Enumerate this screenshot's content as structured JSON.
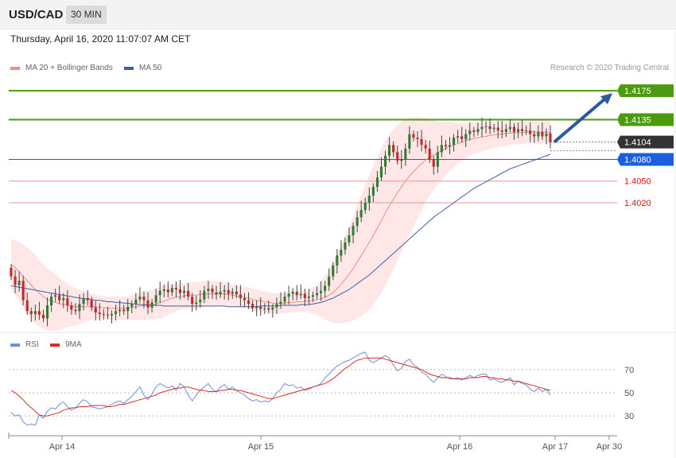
{
  "header": {
    "symbol": "USD/CAD",
    "timeframe": "30 MIN"
  },
  "datetime": "Thursday, April 16, 2020 11:07:07 AM CET",
  "credit": "Research © 2020 Trading Central",
  "colors": {
    "bull": "#2e7d32",
    "bear": "#c62828",
    "ma20": "#f28b82",
    "band": "#ffe3e3",
    "ma50": "#3f5ea8",
    "resistance": "#4c9a0e",
    "pivot": "#1a5fe0",
    "support": "#e88a8a",
    "current": "#333333",
    "arrow": "#2c5aa0",
    "rsi": "#6f90d8",
    "rsi_ma": "#d62d20"
  },
  "chart_data": [
    {
      "type": "candlestick",
      "title": "USD/CAD",
      "legend": [
        {
          "name": "MA 20 + Bollinger Bands",
          "color": "#f28b82"
        },
        {
          "name": "MA 50",
          "color": "#3f5ea8"
        }
      ],
      "ylim": [
        1.3845,
        1.4195
      ],
      "levels": [
        {
          "value": 1.4175,
          "label": "1.4175",
          "kind": "resistance"
        },
        {
          "value": 1.4135,
          "label": "1.4135",
          "kind": "resistance"
        },
        {
          "value": 1.4104,
          "label": "1.4104",
          "kind": "current"
        },
        {
          "value": 1.408,
          "label": "1.4080",
          "kind": "pivot"
        },
        {
          "value": 1.405,
          "label": "1.4050",
          "kind": "support"
        },
        {
          "value": 1.402,
          "label": "1.4020",
          "kind": "support"
        }
      ],
      "x_ticks": [
        "Apr 14",
        "Apr 15",
        "Apr 16",
        "Apr 17",
        "Apr 30"
      ],
      "close": [
        1.3918,
        1.3906,
        1.3912,
        1.3885,
        1.387,
        1.3866,
        1.387,
        1.3865,
        1.386,
        1.3878,
        1.389,
        1.3892,
        1.3885,
        1.3888,
        1.3878,
        1.3872,
        1.387,
        1.388,
        1.3888,
        1.3885,
        1.3875,
        1.3868,
        1.3866,
        1.3865,
        1.3864,
        1.3866,
        1.387,
        1.3872,
        1.387,
        1.3876,
        1.388,
        1.3886,
        1.389,
        1.3885,
        1.3875,
        1.3882,
        1.3892,
        1.3898,
        1.39,
        1.3896,
        1.3902,
        1.39,
        1.3895,
        1.3898,
        1.389,
        1.388,
        1.3882,
        1.3886,
        1.3898,
        1.3901,
        1.3896,
        1.3893,
        1.3897,
        1.3899,
        1.3894,
        1.3897,
        1.3893,
        1.3888,
        1.3885,
        1.388,
        1.3874,
        1.3876,
        1.3873,
        1.3874,
        1.3872,
        1.3875,
        1.388,
        1.3883,
        1.389,
        1.3894,
        1.3897,
        1.3892,
        1.3894,
        1.3888,
        1.389,
        1.3892,
        1.3895,
        1.3898,
        1.3905,
        1.3918,
        1.3933,
        1.3947,
        1.3955,
        1.3965,
        1.3975,
        1.3988,
        1.4,
        1.401,
        1.402,
        1.403,
        1.4042,
        1.4055,
        1.407,
        1.4085,
        1.41,
        1.409,
        1.4078,
        1.408,
        1.4095,
        1.4115,
        1.411,
        1.4108,
        1.41,
        1.4095,
        1.408,
        1.407,
        1.409,
        1.41,
        1.4098,
        1.41,
        1.411,
        1.4112,
        1.4108,
        1.4115,
        1.412,
        1.4118,
        1.4122,
        1.4125,
        1.4126,
        1.4122,
        1.4124,
        1.412,
        1.4118,
        1.4122,
        1.4125,
        1.4118,
        1.4122,
        1.4119,
        1.412,
        1.4115,
        1.4112,
        1.4118,
        1.4112,
        1.4116,
        1.4104
      ],
      "ma20": [
        1.3935,
        1.393,
        1.3925,
        1.3918,
        1.3912,
        1.3906,
        1.39,
        1.3895,
        1.389,
        1.3886,
        1.3884,
        1.3882,
        1.388,
        1.3879,
        1.3878,
        1.3877,
        1.3876,
        1.3876,
        1.3876,
        1.3876,
        1.3876,
        1.3876,
        1.3875,
        1.3875,
        1.3874,
        1.3874,
        1.3874,
        1.3874,
        1.3874,
        1.3874,
        1.3875,
        1.3876,
        1.3877,
        1.3878,
        1.3878,
        1.3879,
        1.388,
        1.3882,
        1.3884,
        1.3886,
        1.3888,
        1.3889,
        1.389,
        1.3891,
        1.3892,
        1.3892,
        1.3892,
        1.3893,
        1.3894,
        1.3894,
        1.3894,
        1.3894,
        1.3894,
        1.3894,
        1.3893,
        1.3892,
        1.3891,
        1.389,
        1.3889,
        1.3888,
        1.3886,
        1.3885,
        1.3884,
        1.3883,
        1.3882,
        1.3881,
        1.3881,
        1.3881,
        1.3881,
        1.3882,
        1.3882,
        1.3883,
        1.3883,
        1.3884,
        1.3884,
        1.3885,
        1.3886,
        1.3887,
        1.3889,
        1.3892,
        1.3896,
        1.3901,
        1.3907,
        1.3914,
        1.3921,
        1.3929,
        1.3938,
        1.3947,
        1.3956,
        1.3965,
        1.3975,
        1.3985,
        1.3995,
        1.4006,
        1.4016,
        1.4025,
        1.4034,
        1.4042,
        1.405,
        1.4057,
        1.4063,
        1.4069,
        1.4074,
        1.4079,
        1.4083,
        1.4086,
        1.4089,
        1.4092,
        1.4095,
        1.4098,
        1.41,
        1.4102,
        1.4104,
        1.4106,
        1.4108,
        1.4109,
        1.411,
        1.4111,
        1.4112,
        1.4113,
        1.4114,
        1.4115,
        1.4115,
        1.4116,
        1.4116,
        1.4117,
        1.4117,
        1.4117,
        1.4118,
        1.4118,
        1.4118,
        1.4118,
        1.4118,
        1.4118,
        1.4117
      ],
      "band_width": [
        0.0035,
        0.0038,
        0.0041,
        0.0044,
        0.0046,
        0.0047,
        0.0047,
        0.0046,
        0.0045,
        0.0043,
        0.0041,
        0.0039,
        0.0036,
        0.0033,
        0.003,
        0.0028,
        0.0026,
        0.0024,
        0.0022,
        0.002,
        0.0018,
        0.0017,
        0.0016,
        0.0016,
        0.0016,
        0.0016,
        0.0016,
        0.0016,
        0.0016,
        0.0016,
        0.0017,
        0.0018,
        0.0019,
        0.002,
        0.002,
        0.002,
        0.0021,
        0.0022,
        0.0022,
        0.0021,
        0.002,
        0.0019,
        0.0018,
        0.0018,
        0.0018,
        0.0018,
        0.0018,
        0.0018,
        0.0018,
        0.0018,
        0.0018,
        0.0017,
        0.0017,
        0.0016,
        0.0016,
        0.0015,
        0.0015,
        0.0015,
        0.0015,
        0.0015,
        0.0015,
        0.0015,
        0.0015,
        0.0014,
        0.0014,
        0.0014,
        0.0014,
        0.0014,
        0.0014,
        0.0014,
        0.0014,
        0.0014,
        0.0014,
        0.0015,
        0.0016,
        0.0018,
        0.0021,
        0.0025,
        0.003,
        0.0036,
        0.0042,
        0.0048,
        0.0054,
        0.006,
        0.0066,
        0.0072,
        0.0078,
        0.0084,
        0.0089,
        0.0093,
        0.0096,
        0.0098,
        0.01,
        0.01,
        0.0099,
        0.0097,
        0.0094,
        0.009,
        0.0086,
        0.0081,
        0.0076,
        0.007,
        0.0064,
        0.0058,
        0.0053,
        0.0048,
        0.0044,
        0.004,
        0.0037,
        0.0034,
        0.0031,
        0.0028,
        0.0026,
        0.0024,
        0.0023,
        0.0022,
        0.0021,
        0.002,
        0.0019,
        0.0019,
        0.0018,
        0.0018,
        0.0017,
        0.0017,
        0.0016,
        0.0016,
        0.0016,
        0.0016,
        0.0016,
        0.0016,
        0.0016,
        0.0016,
        0.0016,
        0.0016,
        0.0016
      ],
      "ma50": [
        1.3905,
        1.3904,
        1.3903,
        1.3902,
        1.3901,
        1.39,
        1.3899,
        1.3898,
        1.3897,
        1.3896,
        1.3895,
        1.3894,
        1.3893,
        1.3892,
        1.3891,
        1.389,
        1.3889,
        1.3888,
        1.3887,
        1.3887,
        1.3886,
        1.3885,
        1.3885,
        1.3884,
        1.3883,
        1.3883,
        1.3882,
        1.3882,
        1.3881,
        1.3881,
        1.388,
        1.388,
        1.3879,
        1.3879,
        1.3878,
        1.3878,
        1.3878,
        1.3878,
        1.3877,
        1.3877,
        1.3877,
        1.3877,
        1.3877,
        1.3877,
        1.3877,
        1.3877,
        1.3877,
        1.3877,
        1.3877,
        1.3877,
        1.3877,
        1.3877,
        1.3877,
        1.3877,
        1.3876,
        1.3876,
        1.3876,
        1.3876,
        1.3876,
        1.3876,
        1.3876,
        1.3876,
        1.3877,
        1.3877,
        1.3877,
        1.3877,
        1.3877,
        1.3878,
        1.3878,
        1.3878,
        1.3878,
        1.3878,
        1.3879,
        1.3879,
        1.3879,
        1.388,
        1.3881,
        1.3882,
        1.3884,
        1.3886,
        1.3888,
        1.3891,
        1.3894,
        1.3897,
        1.39,
        1.3904,
        1.3908,
        1.3912,
        1.3916,
        1.392,
        1.3925,
        1.393,
        1.3935,
        1.394,
        1.3945,
        1.395,
        1.3955,
        1.396,
        1.3965,
        1.397,
        1.3975,
        1.398,
        1.3985,
        1.399,
        1.3995,
        1.4,
        1.4004,
        1.4008,
        1.4012,
        1.4016,
        1.402,
        1.4024,
        1.4028,
        1.4032,
        1.4036,
        1.404,
        1.4043,
        1.4046,
        1.4049,
        1.4052,
        1.4055,
        1.4058,
        1.4061,
        1.4064,
        1.4067,
        1.4069,
        1.4071,
        1.4073,
        1.4075,
        1.4077,
        1.4079,
        1.4081,
        1.4083,
        1.4085,
        1.4087
      ]
    },
    {
      "type": "line",
      "title": "RSI",
      "legend": [
        {
          "name": "RSI",
          "color": "#6f90d8"
        },
        {
          "name": "9MA",
          "color": "#d62d20"
        }
      ],
      "ylim": [
        15,
        87
      ],
      "yticks": [
        70,
        50,
        30
      ],
      "series": [
        {
          "name": "RSI",
          "values": [
            33,
            30,
            31,
            25,
            22,
            23,
            22,
            31,
            28,
            34,
            37,
            36,
            40,
            42,
            38,
            35,
            37,
            41,
            44,
            42,
            38,
            37,
            36,
            37,
            38,
            40,
            42,
            43,
            41,
            44,
            47,
            51,
            55,
            48,
            44,
            49,
            55,
            58,
            56,
            54,
            56,
            52,
            58,
            55,
            48,
            43,
            48,
            52,
            55,
            58,
            53,
            51,
            55,
            57,
            53,
            55,
            52,
            50,
            48,
            45,
            43,
            44,
            42,
            43,
            42,
            45,
            50,
            53,
            58,
            56,
            57,
            54,
            55,
            52,
            53,
            55,
            56,
            58,
            63,
            66,
            70,
            73,
            75,
            77,
            78,
            80,
            82,
            84,
            85,
            78,
            76,
            78,
            80,
            82,
            80,
            74,
            69,
            71,
            77,
            79,
            74,
            72,
            68,
            66,
            62,
            59,
            63,
            66,
            64,
            62,
            62,
            63,
            61,
            63,
            65,
            63,
            65,
            66,
            66,
            61,
            62,
            60,
            59,
            61,
            63,
            57,
            60,
            58,
            57,
            53,
            51,
            54,
            51,
            53,
            48
          ]
        },
        {
          "name": "9MA",
          "values": [
            52,
            50,
            47,
            44,
            40,
            37,
            34,
            31,
            30,
            30,
            31,
            32,
            33,
            35,
            36,
            37,
            37,
            38,
            38,
            38,
            39,
            39,
            39,
            39,
            38,
            38,
            39,
            40,
            40,
            41,
            42,
            43,
            44,
            45,
            46,
            47,
            48,
            50,
            51,
            52,
            53,
            54,
            54,
            55,
            55,
            54,
            53,
            52,
            52,
            51,
            51,
            51,
            52,
            52,
            53,
            53,
            52,
            52,
            51,
            50,
            49,
            48,
            47,
            46,
            45,
            45,
            46,
            47,
            48,
            49,
            50,
            51,
            52,
            53,
            54,
            55,
            56,
            57,
            58,
            60,
            62,
            65,
            68,
            71,
            73,
            76,
            78,
            79,
            80,
            80,
            80,
            80,
            80,
            79,
            78,
            77,
            76,
            75,
            74,
            73,
            72,
            71,
            70,
            68,
            66,
            65,
            64,
            63,
            63,
            63,
            62,
            62,
            62,
            62,
            63,
            63,
            63,
            64,
            64,
            63,
            63,
            62,
            62,
            61,
            61,
            60,
            60,
            59,
            58,
            57,
            56,
            55,
            54,
            53,
            52
          ]
        }
      ]
    }
  ]
}
